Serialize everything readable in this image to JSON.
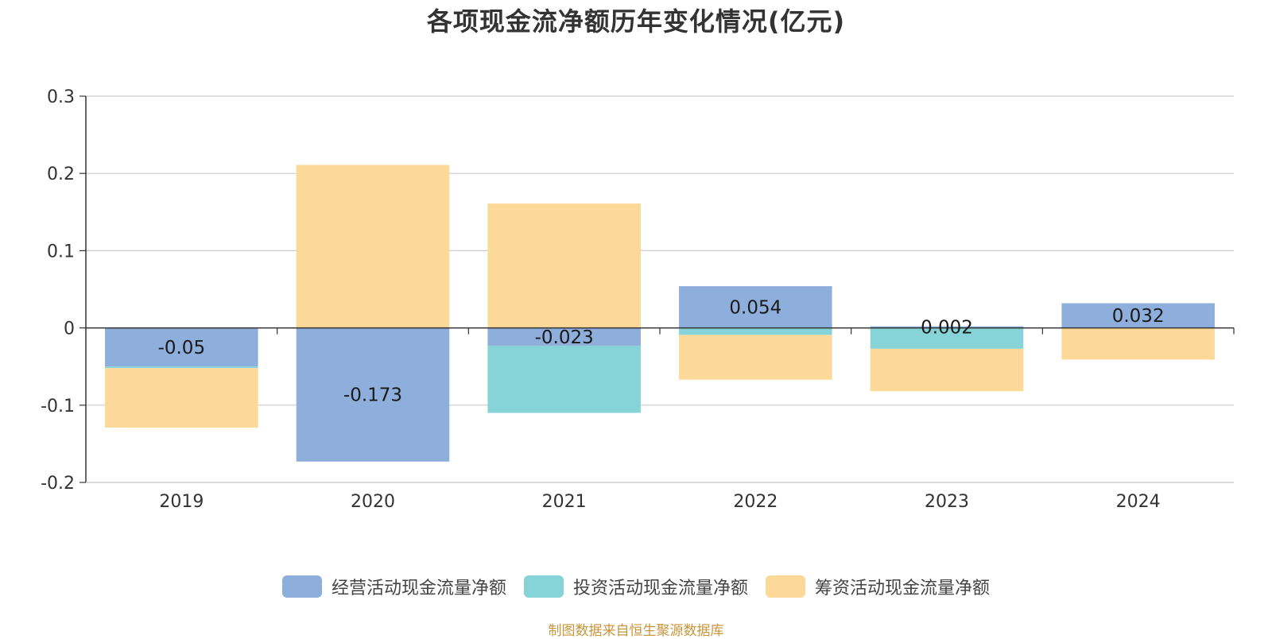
{
  "title": "各项现金流净额历年变化情况(亿元)",
  "source": "制图数据来自恒生聚源数据库",
  "chart_data": {
    "type": "bar",
    "stacked": true,
    "categories": [
      "2019",
      "2020",
      "2021",
      "2022",
      "2023",
      "2024"
    ],
    "ylim": [
      -0.2,
      0.3
    ],
    "yticks": [
      "0.3",
      "0.2",
      "0.1",
      "0",
      "-0.1",
      "-0.2"
    ],
    "ytick_values": [
      0.3,
      0.2,
      0.1,
      0,
      -0.1,
      -0.2
    ],
    "grid": true,
    "legend_position": "bottom",
    "series": [
      {
        "name": "经营活动现金流量净额",
        "color": "#8eaedb",
        "values": [
          -0.05,
          -0.173,
          -0.023,
          0.054,
          0.002,
          0.032
        ],
        "labels": [
          "-0.05",
          "-0.173",
          "-0.023",
          "0.054",
          "0.002",
          "0.032"
        ]
      },
      {
        "name": "投资活动现金流量净额",
        "color": "#86d4d8",
        "values": [
          -0.002,
          0,
          -0.087,
          -0.009,
          -0.027,
          0
        ]
      },
      {
        "name": "筹资活动现金流量净额",
        "color": "#fdd999",
        "values": [
          -0.077,
          0.211,
          0.161,
          -0.058,
          -0.055,
          -0.041
        ]
      }
    ]
  }
}
